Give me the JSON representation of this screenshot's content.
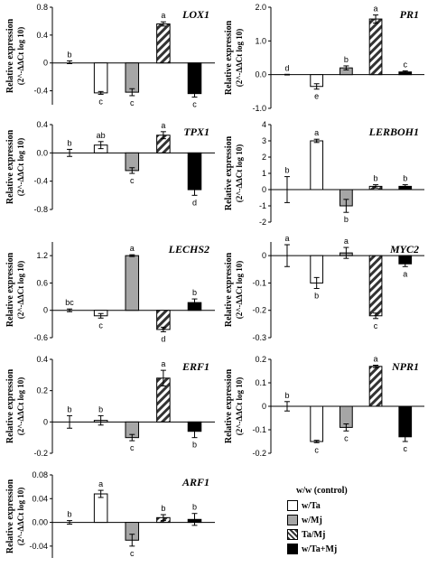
{
  "chart_data": [
    {
      "type": "bar",
      "gene": "LOX1",
      "ylabel": "Relative expression",
      "ysub": "(2^-ΔΔCt log 10)",
      "yticks": [
        "0.8",
        "0.4",
        "0",
        "-0.4"
      ],
      "tick_values": [
        0.8,
        0.4,
        0,
        -0.4
      ],
      "ylim": [
        -0.6,
        0.8
      ],
      "values": [
        0.01,
        -0.43,
        -0.42,
        0.56,
        -0.44
      ],
      "errors": [
        0.02,
        0.02,
        0.05,
        0.03,
        0.05
      ],
      "letters": [
        "b",
        "c",
        "c",
        "a",
        "c"
      ]
    },
    {
      "type": "bar",
      "gene": "PR1",
      "ylabel": "Relative expression",
      "ysub": "(2^-ΔΔCt log 10)",
      "yticks": [
        "2.0",
        "1.0",
        "0.0",
        "-1.0"
      ],
      "tick_values": [
        2.0,
        1.0,
        0.0,
        -1.0
      ],
      "ylim": [
        -1.0,
        2.0
      ],
      "values": [
        0.0,
        -0.35,
        0.2,
        1.65,
        0.08
      ],
      "errors": [
        0.01,
        0.08,
        0.06,
        0.12,
        0.03
      ],
      "letters": [
        "d",
        "e",
        "b",
        "a",
        "c"
      ]
    },
    {
      "type": "bar",
      "gene": "TPX1",
      "ylabel": "Relative expression",
      "ysub": "(2^-ΔΔCt log 10)",
      "yticks": [
        "0.4",
        "0.0",
        "-0.4",
        "-0.8"
      ],
      "tick_values": [
        0.4,
        0.0,
        -0.4,
        -0.8
      ],
      "ylim": [
        -0.8,
        0.4
      ],
      "values": [
        0.0,
        0.11,
        -0.25,
        0.25,
        -0.52
      ],
      "errors": [
        0.05,
        0.05,
        0.04,
        0.05,
        0.08
      ],
      "letters": [
        "b",
        "ab",
        "c",
        "a",
        "d"
      ]
    },
    {
      "type": "bar",
      "gene": "LERBOH1",
      "ylabel": "Relative expression",
      "ysub": "(2^-ΔΔCt log 10)",
      "yticks": [
        "4",
        "3",
        "2",
        "1",
        "0",
        "-1",
        "-2"
      ],
      "tick_values": [
        4,
        3,
        2,
        1,
        0,
        -1,
        -2
      ],
      "ylim": [
        -2,
        4
      ],
      "values": [
        0.0,
        3.0,
        -1.0,
        0.2,
        0.2
      ],
      "errors": [
        0.8,
        0.1,
        0.4,
        0.1,
        0.1
      ],
      "letters": [
        "b",
        "a",
        "b",
        "b",
        "b"
      ]
    },
    {
      "type": "bar",
      "gene": "LECHS2",
      "ylabel": "Relative expression",
      "ysub": "(2^-ΔΔCt log 10)",
      "yticks": [
        "1.2",
        "0.6",
        "0",
        "-0.6"
      ],
      "tick_values": [
        1.2,
        0.6,
        0,
        -0.6
      ],
      "ylim": [
        -0.6,
        1.5
      ],
      "values": [
        0.0,
        -0.12,
        1.2,
        -0.42,
        0.17
      ],
      "errors": [
        0.03,
        0.05,
        0.02,
        0.05,
        0.08
      ],
      "letters": [
        "bc",
        "c",
        "a",
        "d",
        "b"
      ]
    },
    {
      "type": "bar",
      "gene": "MYC2",
      "ylabel": "Relative expression",
      "ysub": "(2^-ΔΔCt log 10)",
      "yticks": [
        "0",
        "-0.1",
        "-0.2",
        "-0.3"
      ],
      "tick_values": [
        0,
        -0.1,
        -0.2,
        -0.3
      ],
      "ylim": [
        -0.3,
        0.05
      ],
      "values": [
        0.0,
        -0.1,
        0.01,
        -0.22,
        -0.03
      ],
      "errors": [
        0.04,
        0.02,
        0.02,
        0.01,
        0.01
      ],
      "letters": [
        "a",
        "b",
        "a",
        "c",
        "a"
      ]
    },
    {
      "type": "bar",
      "gene": "ERF1",
      "ylabel": "Relative expression",
      "ysub": "(2^-ΔΔCt log 10)",
      "yticks": [
        "0.4",
        "0.2",
        "0",
        "-0.2"
      ],
      "tick_values": [
        0.4,
        0.2,
        0,
        -0.2
      ],
      "ylim": [
        -0.2,
        0.4
      ],
      "values": [
        0.0,
        0.01,
        -0.1,
        0.28,
        -0.06
      ],
      "errors": [
        0.04,
        0.03,
        0.02,
        0.05,
        0.04
      ],
      "letters": [
        "b",
        "b",
        "c",
        "a",
        "b"
      ]
    },
    {
      "type": "bar",
      "gene": "NPR1",
      "ylabel": "Relative expression",
      "ysub": "(2^-ΔΔCt log 10)",
      "yticks": [
        "0.2",
        "0.1",
        "0",
        "-0.1",
        "-0.2"
      ],
      "tick_values": [
        0.2,
        0.1,
        0,
        -0.1,
        -0.2
      ],
      "ylim": [
        -0.2,
        0.2
      ],
      "values": [
        0.0,
        -0.15,
        -0.09,
        0.17,
        -0.13
      ],
      "errors": [
        0.02,
        0.005,
        0.015,
        0.005,
        0.02
      ],
      "letters": [
        "b",
        "c",
        "c",
        "a",
        "c"
      ]
    },
    {
      "type": "bar",
      "gene": "ARF1",
      "ylabel": "Relative expression",
      "ysub": "(2^-ΔΔCt log 10)",
      "yticks": [
        "0.08",
        "0.04",
        "0.00",
        "-0.04"
      ],
      "tick_values": [
        0.08,
        0.04,
        0.0,
        -0.04
      ],
      "ylim": [
        -0.06,
        0.08
      ],
      "values": [
        0.0,
        0.048,
        -0.03,
        0.008,
        0.005
      ],
      "errors": [
        0.003,
        0.006,
        0.01,
        0.005,
        0.01
      ],
      "letters": [
        "b",
        "a",
        "c",
        "b",
        "b"
      ]
    }
  ],
  "legend": {
    "title": "w/w (control)",
    "items": [
      {
        "label": "w/Ta",
        "fill": "#ffffff",
        "pattern": "none"
      },
      {
        "label": "w/Mj",
        "fill": "#a6a6a6",
        "pattern": "none"
      },
      {
        "label": "Ta/Mj",
        "fill": "#ffffff",
        "pattern": "diagonal"
      },
      {
        "label": "w/Ta+Mj",
        "fill": "#000000",
        "pattern": "none"
      }
    ]
  },
  "colors": {
    "w_Ta": "#ffffff",
    "w_Mj": "#a6a6a6",
    "Ta_Mj": "#ffffff",
    "w_Ta_Mj": "#000000"
  }
}
